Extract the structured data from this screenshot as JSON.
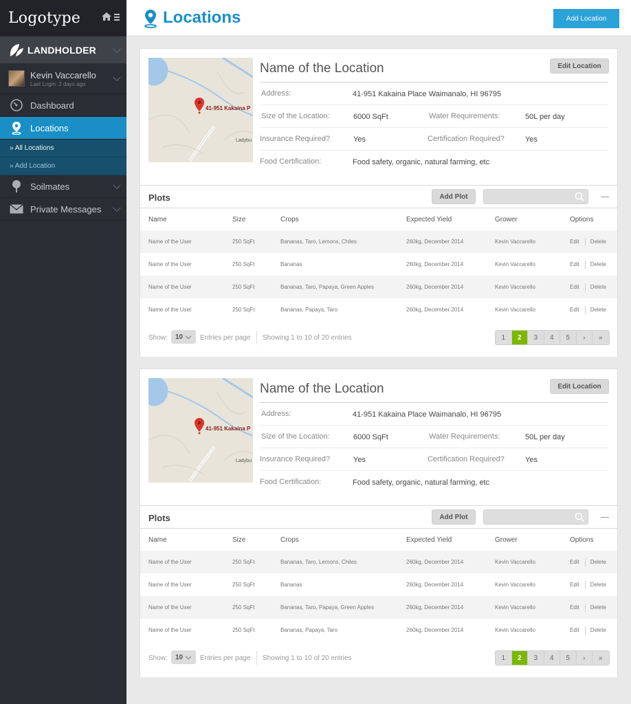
{
  "sidebar": {
    "logo": "Logotype",
    "brand": "LANDHOLDER",
    "user": {
      "name": "Kevin Vaccarello",
      "last_login": "Last Login: 2 days ago"
    },
    "nav": [
      {
        "label": "Dashboard",
        "icon": "dashboard-icon"
      },
      {
        "label": "Locations",
        "icon": "location-pin-icon",
        "active": true
      },
      {
        "label": "Soilmates",
        "icon": "tree-icon"
      },
      {
        "label": "Private Messages",
        "icon": "envelope-icon"
      }
    ],
    "sub": [
      "» All Locations",
      "» Add Location"
    ]
  },
  "header": {
    "title": "Locations",
    "add_button": "Add Location"
  },
  "colors": {
    "accent": "#1a8fc6",
    "active_page": "#7ab800",
    "sidebar": "#2a2d33"
  },
  "cards": [
    {
      "name": "Name of the Location",
      "edit_button": "Edit Location",
      "map_label": "41-951 Kakaina P",
      "map_label2": "Ladybu",
      "info": {
        "address_label": "Address:",
        "address": "41-951 Kakaina Place Waimanalo, HI 96795",
        "size_label": "Size of the Location:",
        "size": "6000 SqFt",
        "water_label": "Water Requirements:",
        "water": "50L per day",
        "insurance_label": "Insurance Required?",
        "insurance": "Yes",
        "cert_label": "Certification Required?",
        "cert": "Yes",
        "food_label": "Food Certification:",
        "food": "Food safety, organic, natural farming, etc"
      },
      "plots": {
        "title": "Plots",
        "add_button": "Add Plot",
        "search_placeholder": "",
        "headers": [
          "Name",
          "Size",
          "Crops",
          "Expected Yield",
          "Grower",
          "Options"
        ],
        "rows": [
          [
            "Name of the User",
            "250 SqFt",
            "Bananas, Taro, Lemons, Chiles",
            "260kg, December 2014",
            "Kevin Vaccarello"
          ],
          [
            "Name of the User",
            "250 SqFt",
            "Bananas",
            "260kg, December 2014",
            "Kevin Vaccarello"
          ],
          [
            "Name of the User",
            "250 SqFt",
            "Bananas, Taro, Papaya, Green Apples",
            "260kg, December 2014",
            "Kevin Vaccarello"
          ],
          [
            "Name of the User",
            "250 SqFt",
            "Bananas, Papaya, Taro",
            "260kg, December 2014",
            "Kevin Vaccarello"
          ]
        ],
        "edit": "Edit",
        "delete": "Delete",
        "show": "Show:",
        "per_page": "10",
        "entries": "Entries per page",
        "showing": "Showing 1 to 10 of 20 entries",
        "pages": [
          "1",
          "2",
          "3",
          "4",
          "5",
          "›",
          "»"
        ],
        "current_page": "2"
      }
    },
    {
      "name": "Name of the Location",
      "edit_button": "Edit Location",
      "map_label": "41-951 Kakaina P",
      "map_label2": "Ladybu",
      "info": {
        "address_label": "Address:",
        "address": "41-951 Kakaina Place Waimanalo, HI 96795",
        "size_label": "Size of the Location:",
        "size": "6000 SqFt",
        "water_label": "Water Requirements:",
        "water": "50L per day",
        "insurance_label": "Insurance Required?",
        "insurance": "Yes",
        "cert_label": "Certification Required?",
        "cert": "Yes",
        "food_label": "Food Certification:",
        "food": "Food safety, organic, natural farming, etc"
      },
      "plots": {
        "title": "Plots",
        "add_button": "Add Plot",
        "search_placeholder": "",
        "headers": [
          "Name",
          "Size",
          "Crops",
          "Expected Yield",
          "Grower",
          "Options"
        ],
        "rows": [
          [
            "Name of the User",
            "250 SqFt",
            "Bananas, Taro, Lemons, Chiles",
            "260kg, December 2014",
            "Kevin Vaccarello"
          ],
          [
            "Name of the User",
            "250 SqFt",
            "Bananas",
            "260kg, December 2014",
            "Kevin Vaccarello"
          ],
          [
            "Name of the User",
            "250 SqFt",
            "Bananas, Taro, Papaya, Green Apples",
            "260kg, December 2014",
            "Kevin Vaccarello"
          ],
          [
            "Name of the User",
            "250 SqFt",
            "Bananas, Papaya, Taro",
            "260kg, December 2014",
            "Kevin Vaccarello"
          ]
        ],
        "edit": "Edit",
        "delete": "Delete",
        "show": "Show:",
        "per_page": "10",
        "entries": "Entries per page",
        "showing": "Showing 1 to 10 of 20 entries",
        "pages": [
          "1",
          "2",
          "3",
          "4",
          "5",
          "›",
          "»"
        ],
        "current_page": "2"
      }
    }
  ]
}
